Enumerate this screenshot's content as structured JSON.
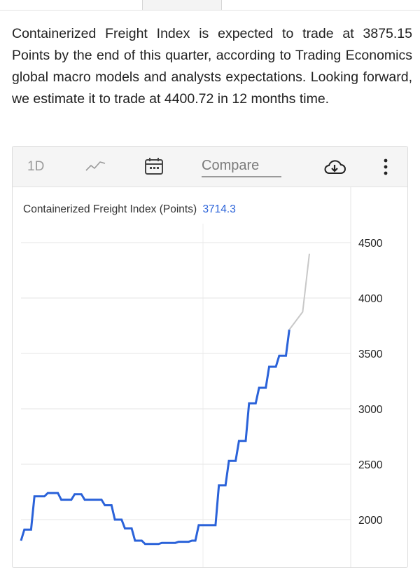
{
  "summary_text": "Containerized Freight Index is expected to trade at 3875.15 Points by the end of this quarter, according to Trading Economics global macro models and analysts expectations. Looking forward, we estimate it to trade at 4400.72 in 12 months time.",
  "toolbar": {
    "range_label": "1D",
    "line_chart_icon": "line-chart-icon",
    "calendar_icon": "calendar-icon",
    "compare_label": "Compare",
    "download_icon": "cloud-download-icon",
    "more_icon": "more-vertical-icon"
  },
  "chart_title": "Containerized Freight Index (Points)",
  "chart_last_value": "3714.3",
  "colors": {
    "actual_line": "#2a62d9",
    "forecast_line": "#c8c8c8",
    "last_value": "#2a62d9"
  },
  "chart_data": {
    "type": "line",
    "title": "Containerized Freight Index (Points)",
    "xlabel": "",
    "ylabel": "",
    "ylim": [
      1800,
      4700
    ],
    "yticks": [
      2000,
      2500,
      3000,
      3500,
      4000,
      4500
    ],
    "ytick_labels": [
      "2000",
      "2500",
      "3000",
      "3500",
      "4000",
      "4500"
    ],
    "grid": true,
    "y_axis_position": "right",
    "series": [
      {
        "role": "actual",
        "points": [
          [
            0,
            1810
          ],
          [
            1,
            1910
          ],
          [
            3,
            1910
          ],
          [
            4,
            2210
          ],
          [
            7,
            2210
          ],
          [
            8,
            2240
          ],
          [
            11,
            2240
          ],
          [
            12,
            2180
          ],
          [
            15,
            2180
          ],
          [
            16,
            2230
          ],
          [
            18,
            2230
          ],
          [
            19,
            2180
          ],
          [
            24,
            2180
          ],
          [
            25,
            2130
          ],
          [
            27,
            2130
          ],
          [
            28,
            2000
          ],
          [
            30,
            2000
          ],
          [
            31,
            1920
          ],
          [
            33,
            1920
          ],
          [
            34,
            1810
          ],
          [
            36,
            1810
          ],
          [
            37,
            1780
          ],
          [
            41,
            1780
          ],
          [
            42,
            1790
          ],
          [
            46,
            1790
          ],
          [
            47,
            1800
          ],
          [
            50,
            1800
          ],
          [
            51,
            1810
          ],
          [
            52,
            1810
          ],
          [
            53,
            1950
          ],
          [
            58,
            1950
          ],
          [
            59,
            2310
          ],
          [
            61,
            2310
          ],
          [
            62,
            2530
          ],
          [
            64,
            2530
          ],
          [
            65,
            2710
          ],
          [
            67,
            2710
          ],
          [
            68,
            3050
          ],
          [
            70,
            3050
          ],
          [
            71,
            3190
          ],
          [
            73,
            3190
          ],
          [
            74,
            3380
          ],
          [
            76,
            3380
          ],
          [
            77,
            3480
          ],
          [
            79,
            3480
          ],
          [
            80,
            3714.3
          ]
        ]
      },
      {
        "role": "forecast",
        "points": [
          [
            80,
            3714.3
          ],
          [
            84,
            3875.15
          ],
          [
            86,
            4400.72
          ]
        ]
      }
    ]
  }
}
